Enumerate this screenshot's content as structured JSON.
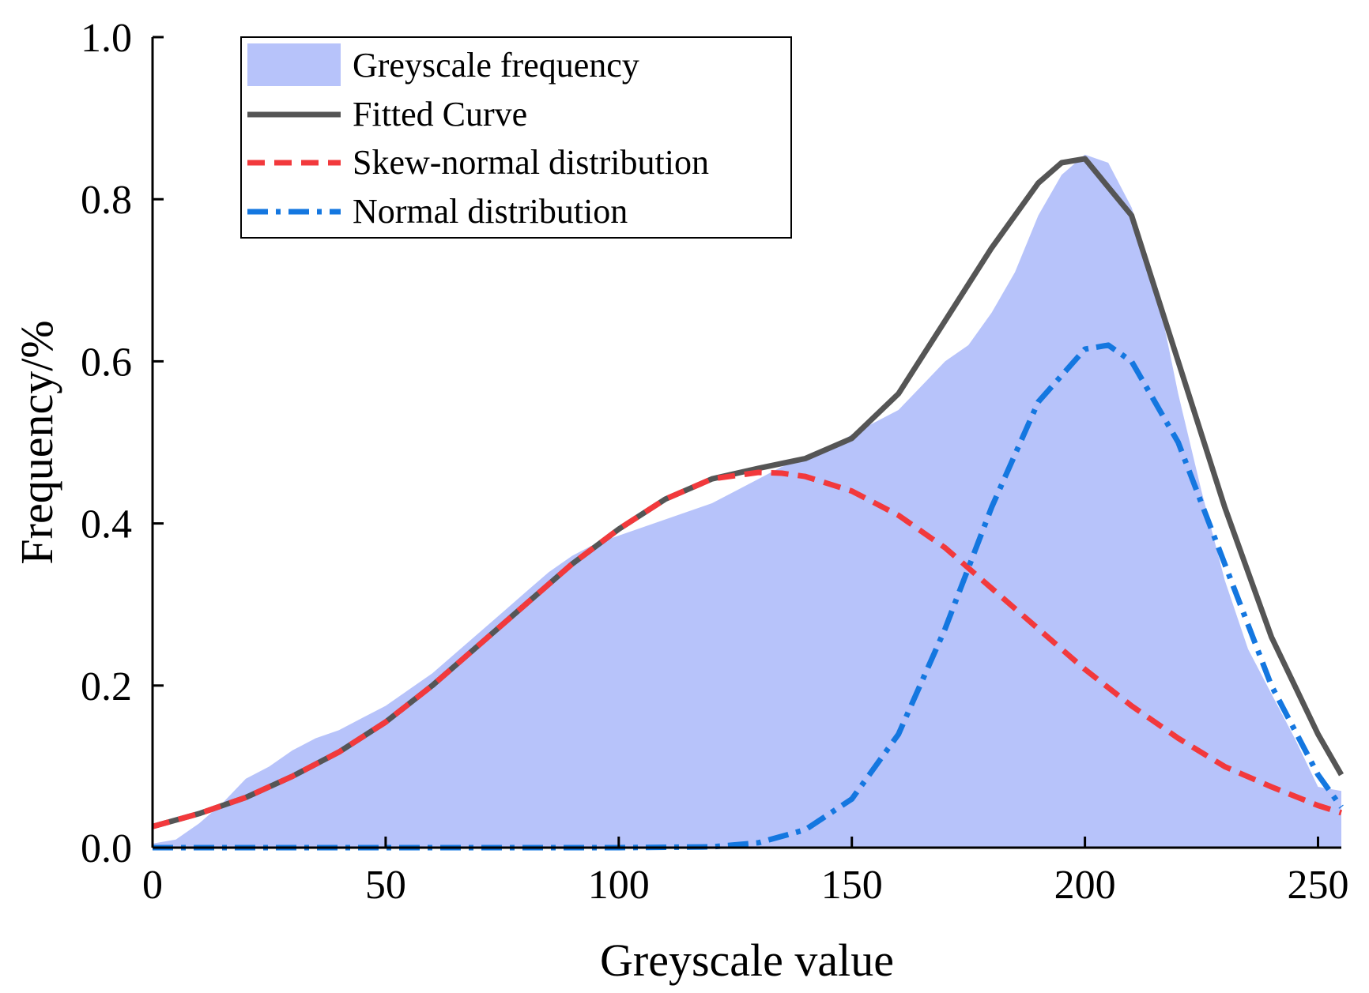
{
  "chart_data": {
    "type": "area",
    "title": "",
    "xlabel": "Greyscale value",
    "ylabel": "Frequency/%",
    "xlim": [
      0,
      255
    ],
    "ylim": [
      0,
      1.0
    ],
    "xticks": [
      0,
      50,
      100,
      150,
      200,
      250
    ],
    "yticks": [
      0.0,
      0.2,
      0.4,
      0.6,
      0.8,
      1.0
    ],
    "xtick_labels": [
      "0",
      "50",
      "100",
      "150",
      "200",
      "250"
    ],
    "ytick_labels": [
      "0.0",
      "0.2",
      "0.4",
      "0.6",
      "0.8",
      "1.0"
    ],
    "grid": false,
    "legend_position": "top-left",
    "series": [
      {
        "name": "Greyscale frequency",
        "kind": "histogram-area",
        "color": "#b7c3fa",
        "x": [
          0,
          5,
          10,
          15,
          20,
          25,
          30,
          35,
          40,
          45,
          50,
          55,
          60,
          65,
          70,
          75,
          80,
          85,
          90,
          95,
          100,
          105,
          110,
          115,
          120,
          125,
          130,
          135,
          140,
          145,
          150,
          155,
          160,
          165,
          170,
          175,
          180,
          185,
          190,
          195,
          200,
          205,
          210,
          215,
          220,
          225,
          230,
          235,
          240,
          245,
          250,
          255
        ],
        "y": [
          0.005,
          0.01,
          0.03,
          0.055,
          0.085,
          0.1,
          0.12,
          0.135,
          0.145,
          0.16,
          0.175,
          0.195,
          0.215,
          0.24,
          0.265,
          0.29,
          0.315,
          0.34,
          0.36,
          0.375,
          0.385,
          0.395,
          0.405,
          0.415,
          0.425,
          0.44,
          0.455,
          0.47,
          0.48,
          0.49,
          0.51,
          0.525,
          0.54,
          0.57,
          0.6,
          0.62,
          0.66,
          0.71,
          0.78,
          0.83,
          0.855,
          0.845,
          0.79,
          0.7,
          0.56,
          0.44,
          0.33,
          0.245,
          0.19,
          0.135,
          0.075,
          0.07
        ]
      },
      {
        "name": "Fitted Curve",
        "kind": "line",
        "style": "solid",
        "color": "#555555",
        "x": [
          0,
          10,
          20,
          30,
          40,
          50,
          60,
          70,
          80,
          90,
          100,
          110,
          120,
          130,
          140,
          150,
          160,
          170,
          180,
          190,
          195,
          200,
          210,
          220,
          230,
          240,
          250,
          255
        ],
        "y": [
          0.026,
          0.042,
          0.062,
          0.088,
          0.118,
          0.155,
          0.2,
          0.25,
          0.3,
          0.35,
          0.393,
          0.43,
          0.455,
          0.468,
          0.48,
          0.505,
          0.56,
          0.65,
          0.74,
          0.82,
          0.845,
          0.85,
          0.78,
          0.6,
          0.42,
          0.26,
          0.14,
          0.09
        ]
      },
      {
        "name": "Skew-normal distribution",
        "kind": "line",
        "style": "dashed",
        "color": "#f2393c",
        "x": [
          0,
          10,
          20,
          30,
          40,
          50,
          60,
          70,
          80,
          90,
          100,
          110,
          120,
          130,
          135,
          140,
          150,
          160,
          170,
          180,
          190,
          200,
          210,
          220,
          230,
          240,
          250,
          255
        ],
        "y": [
          0.026,
          0.042,
          0.062,
          0.088,
          0.118,
          0.155,
          0.2,
          0.25,
          0.3,
          0.35,
          0.393,
          0.43,
          0.455,
          0.463,
          0.462,
          0.458,
          0.44,
          0.41,
          0.37,
          0.32,
          0.27,
          0.22,
          0.175,
          0.135,
          0.1,
          0.075,
          0.052,
          0.043
        ]
      },
      {
        "name": "Normal distribution",
        "kind": "line",
        "style": "dash-dot",
        "color": "#1477e0",
        "x": [
          0,
          50,
          100,
          120,
          130,
          140,
          150,
          160,
          170,
          180,
          190,
          200,
          205,
          210,
          220,
          230,
          240,
          250,
          255
        ],
        "y": [
          0.0,
          0.0,
          0.0,
          0.001,
          0.006,
          0.022,
          0.06,
          0.14,
          0.27,
          0.42,
          0.55,
          0.615,
          0.62,
          0.6,
          0.5,
          0.35,
          0.2,
          0.09,
          0.05
        ]
      }
    ]
  }
}
